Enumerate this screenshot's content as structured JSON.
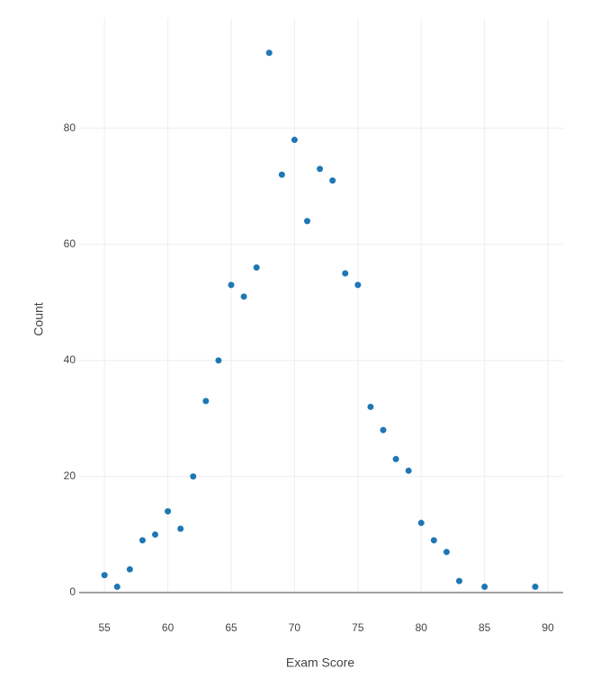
{
  "chart_data": {
    "type": "scatter",
    "x_label": "Exam Score",
    "y_label": "Count",
    "color": "#1f77b4",
    "grid": true,
    "x": [
      55,
      56,
      57,
      58,
      59,
      60,
      61,
      62,
      63,
      64,
      65,
      66,
      67,
      68,
      69,
      70,
      71,
      72,
      73,
      74,
      75,
      76,
      77,
      78,
      79,
      80,
      81,
      82,
      83,
      85,
      89
    ],
    "values": [
      3,
      1,
      4,
      9,
      10,
      14,
      11,
      20,
      33,
      40,
      53,
      51,
      56,
      93,
      72,
      78,
      64,
      73,
      71,
      55,
      53,
      32,
      28,
      23,
      21,
      12,
      9,
      7,
      2,
      1,
      1
    ],
    "xlim": [
      53,
      91.2
    ],
    "xticks": [
      55,
      60,
      65,
      70,
      75,
      80,
      85,
      90
    ],
    "ylim": [
      0,
      99
    ],
    "yticks": [
      0,
      20,
      40,
      60,
      80
    ]
  }
}
